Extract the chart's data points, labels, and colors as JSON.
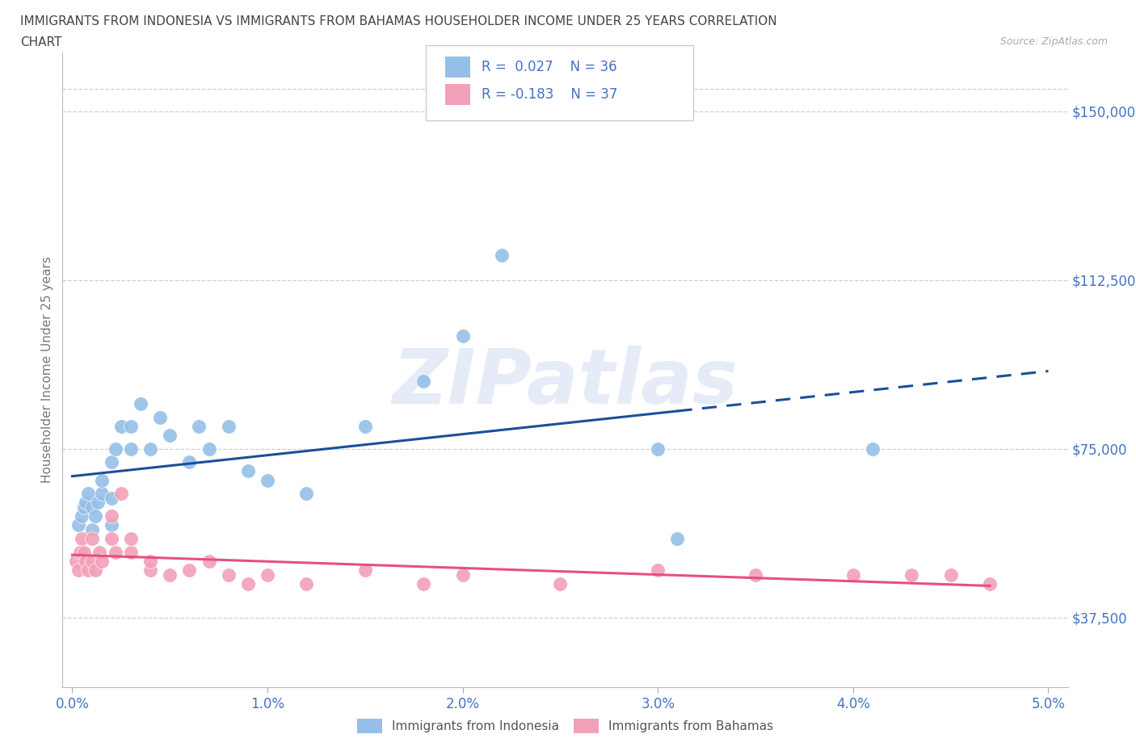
{
  "title_line1": "IMMIGRANTS FROM INDONESIA VS IMMIGRANTS FROM BAHAMAS HOUSEHOLDER INCOME UNDER 25 YEARS CORRELATION",
  "title_line2": "CHART",
  "source": "Source: ZipAtlas.com",
  "ylabel": "Householder Income Under 25 years",
  "xlabel_ticks": [
    "0.0%",
    "1.0%",
    "2.0%",
    "3.0%",
    "4.0%",
    "5.0%"
  ],
  "ytick_labels": [
    "$37,500",
    "$75,000",
    "$112,500",
    "$150,000"
  ],
  "ytick_values": [
    37500,
    75000,
    112500,
    150000
  ],
  "xlim": [
    -0.0005,
    0.051
  ],
  "ylim": [
    22000,
    163000
  ],
  "legend_label1": "Immigrants from Indonesia",
  "legend_label2": "Immigrants from Bahamas",
  "r1": "0.027",
  "n1": "36",
  "r2": "-0.183",
  "n2": "37",
  "color_indonesia": "#95bfe8",
  "color_bahamas": "#f2a0b8",
  "line_color_indonesia": "#1a4f9c",
  "line_color_bahamas": "#e8507a",
  "background_color": "#ffffff",
  "grid_color": "#d0d0d0",
  "indonesia_x": [
    0.0003,
    0.0005,
    0.0006,
    0.0007,
    0.0008,
    0.001,
    0.001,
    0.0012,
    0.0013,
    0.0015,
    0.0015,
    0.002,
    0.002,
    0.002,
    0.0022,
    0.0025,
    0.003,
    0.003,
    0.0035,
    0.004,
    0.0045,
    0.005,
    0.006,
    0.0065,
    0.007,
    0.008,
    0.009,
    0.01,
    0.012,
    0.015,
    0.018,
    0.02,
    0.022,
    0.03,
    0.031,
    0.041
  ],
  "indonesia_y": [
    58000,
    60000,
    62000,
    63000,
    65000,
    57000,
    62000,
    60000,
    63000,
    65000,
    68000,
    58000,
    64000,
    72000,
    75000,
    80000,
    75000,
    80000,
    85000,
    75000,
    82000,
    78000,
    72000,
    80000,
    75000,
    80000,
    70000,
    68000,
    65000,
    80000,
    90000,
    100000,
    118000,
    75000,
    55000,
    75000
  ],
  "bahamas_x": [
    0.0002,
    0.0003,
    0.0004,
    0.0005,
    0.0006,
    0.0007,
    0.0008,
    0.001,
    0.001,
    0.0012,
    0.0014,
    0.0015,
    0.002,
    0.002,
    0.0022,
    0.0025,
    0.003,
    0.003,
    0.004,
    0.004,
    0.005,
    0.006,
    0.007,
    0.008,
    0.009,
    0.01,
    0.012,
    0.015,
    0.018,
    0.02,
    0.025,
    0.03,
    0.035,
    0.04,
    0.043,
    0.045,
    0.047
  ],
  "bahamas_y": [
    50000,
    48000,
    52000,
    55000,
    52000,
    50000,
    48000,
    50000,
    55000,
    48000,
    52000,
    50000,
    55000,
    60000,
    52000,
    65000,
    52000,
    55000,
    48000,
    50000,
    47000,
    48000,
    50000,
    47000,
    45000,
    47000,
    45000,
    48000,
    45000,
    47000,
    45000,
    48000,
    47000,
    47000,
    47000,
    47000,
    45000
  ]
}
